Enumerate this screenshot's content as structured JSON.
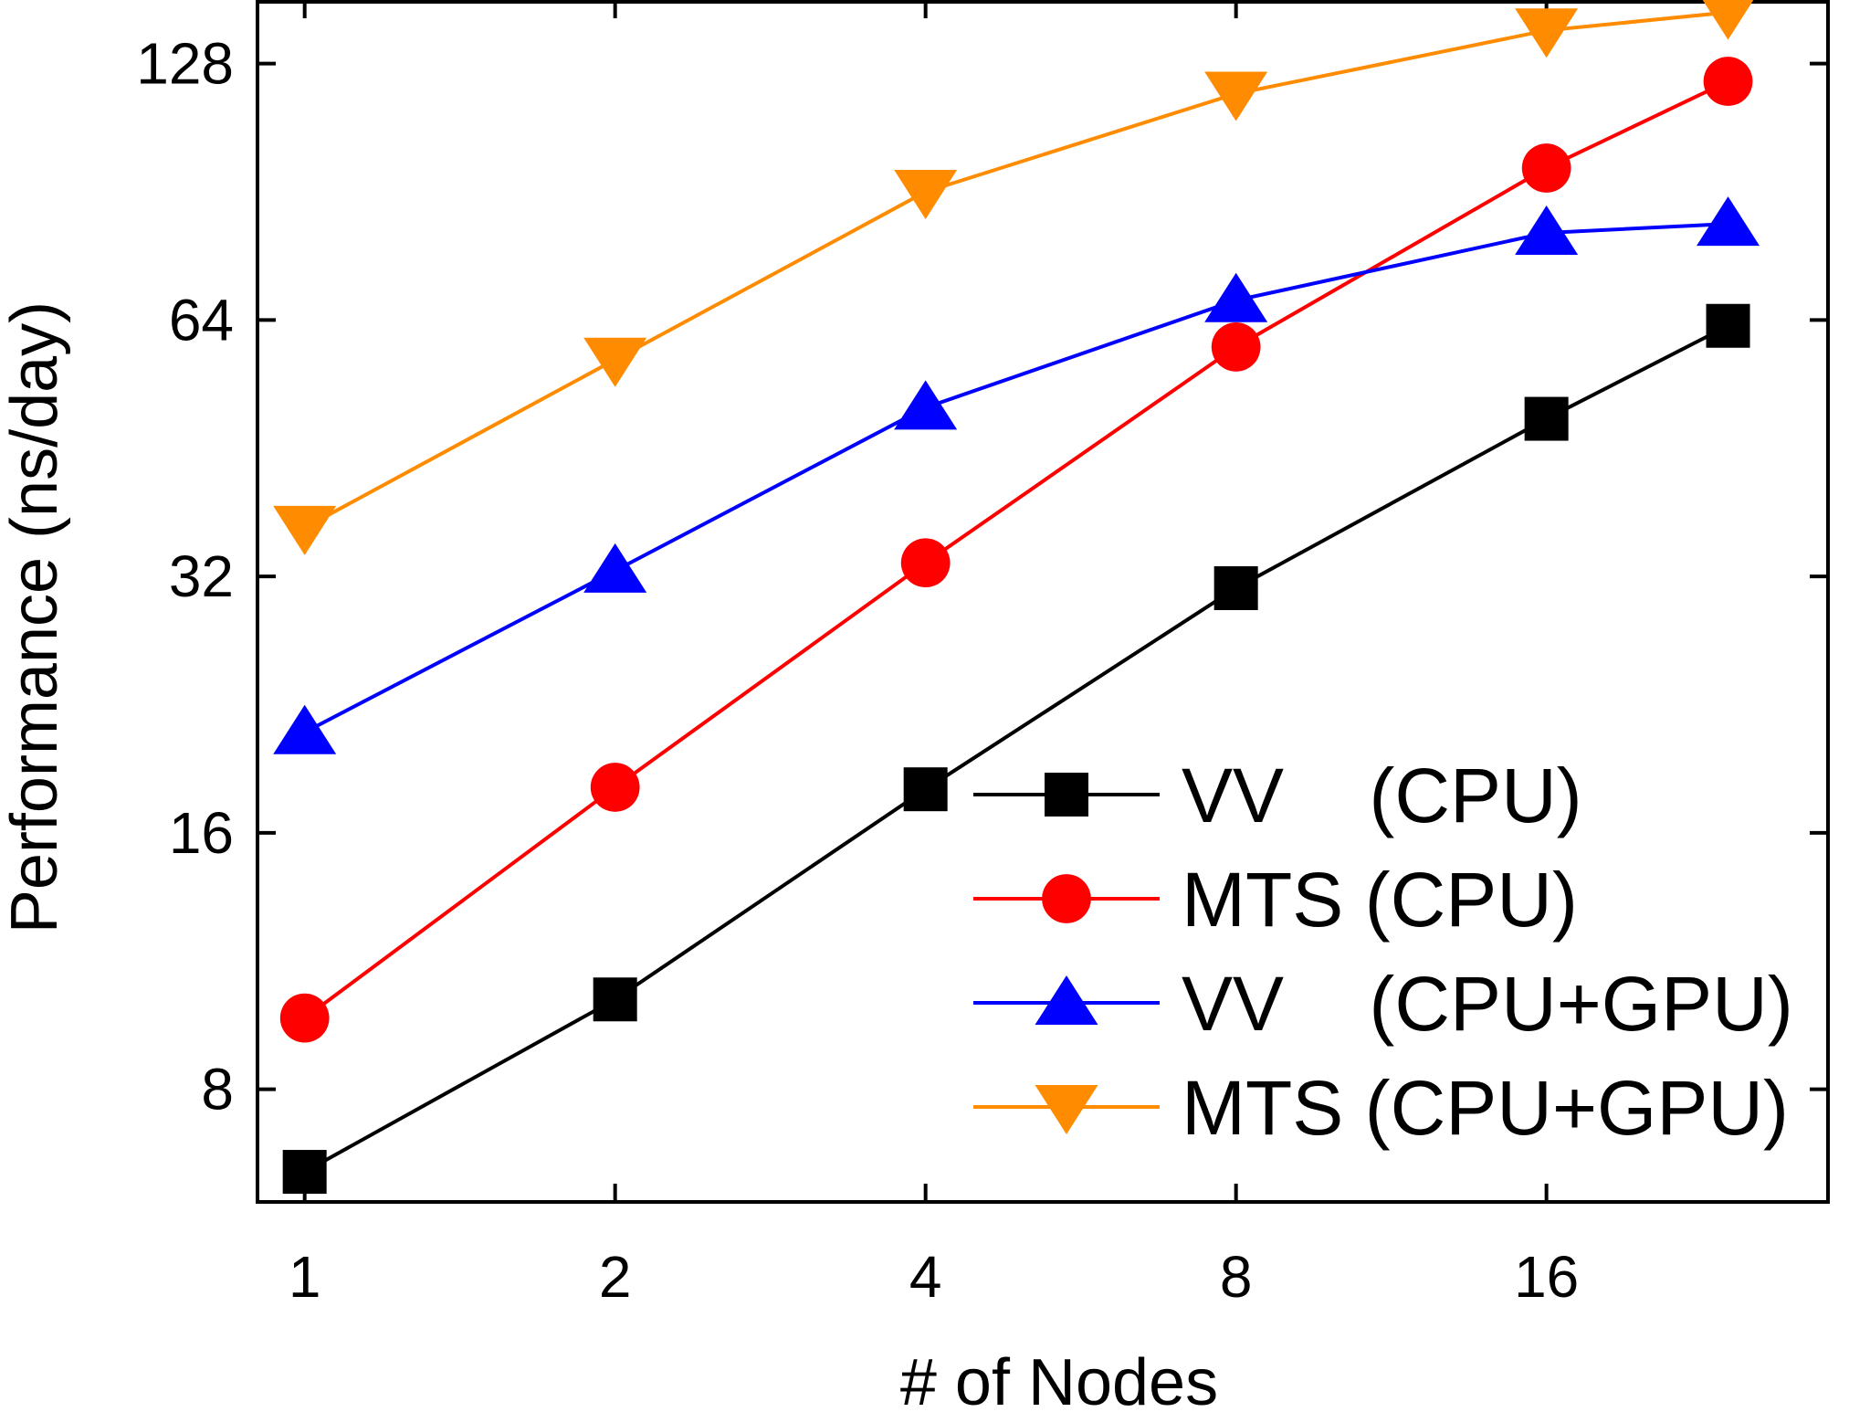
{
  "chart_data": {
    "type": "line",
    "xlabel": "# of Nodes",
    "ylabel": "Performance (ns/day)",
    "x_scale": "log2",
    "y_scale": "log2",
    "xlim": [
      0.9,
      30
    ],
    "ylim": [
      5.9,
      152
    ],
    "x_ticks": [
      1,
      2,
      4,
      8,
      16
    ],
    "x_tick_labels": [
      "1",
      "2",
      "4",
      "8",
      "16"
    ],
    "y_ticks": [
      8,
      16,
      32,
      64,
      128
    ],
    "y_tick_labels": [
      "8",
      "16",
      "32",
      "64",
      "128"
    ],
    "legend_position": "bottom-right",
    "grid": false,
    "series": [
      {
        "name": "VV    (CPU)",
        "color": "#000000",
        "marker": "square",
        "x": [
          1,
          2,
          4,
          8,
          16,
          24
        ],
        "y": [
          6.4,
          10.2,
          18.0,
          31.0,
          49.0,
          63.0
        ]
      },
      {
        "name": "MTS (CPU)",
        "color": "#ff0000",
        "marker": "circle",
        "x": [
          1,
          2,
          4,
          8,
          16,
          24
        ],
        "y": [
          9.7,
          18.1,
          33.2,
          59.5,
          96.5,
          122.0
        ]
      },
      {
        "name": "VV    (CPU+GPU)",
        "color": "#0000ff",
        "marker": "triangle-up",
        "x": [
          1,
          2,
          4,
          8,
          16,
          24
        ],
        "y": [
          21.0,
          32.5,
          50.5,
          67.5,
          81.0,
          83.0
        ]
      },
      {
        "name": "MTS (CPU+GPU)",
        "color": "#ff8c00",
        "marker": "triangle-down",
        "x": [
          1,
          2,
          4,
          8,
          16,
          24
        ],
        "y": [
          36.5,
          57.5,
          90.5,
          118.0,
          140.0,
          147.0
        ]
      }
    ]
  }
}
